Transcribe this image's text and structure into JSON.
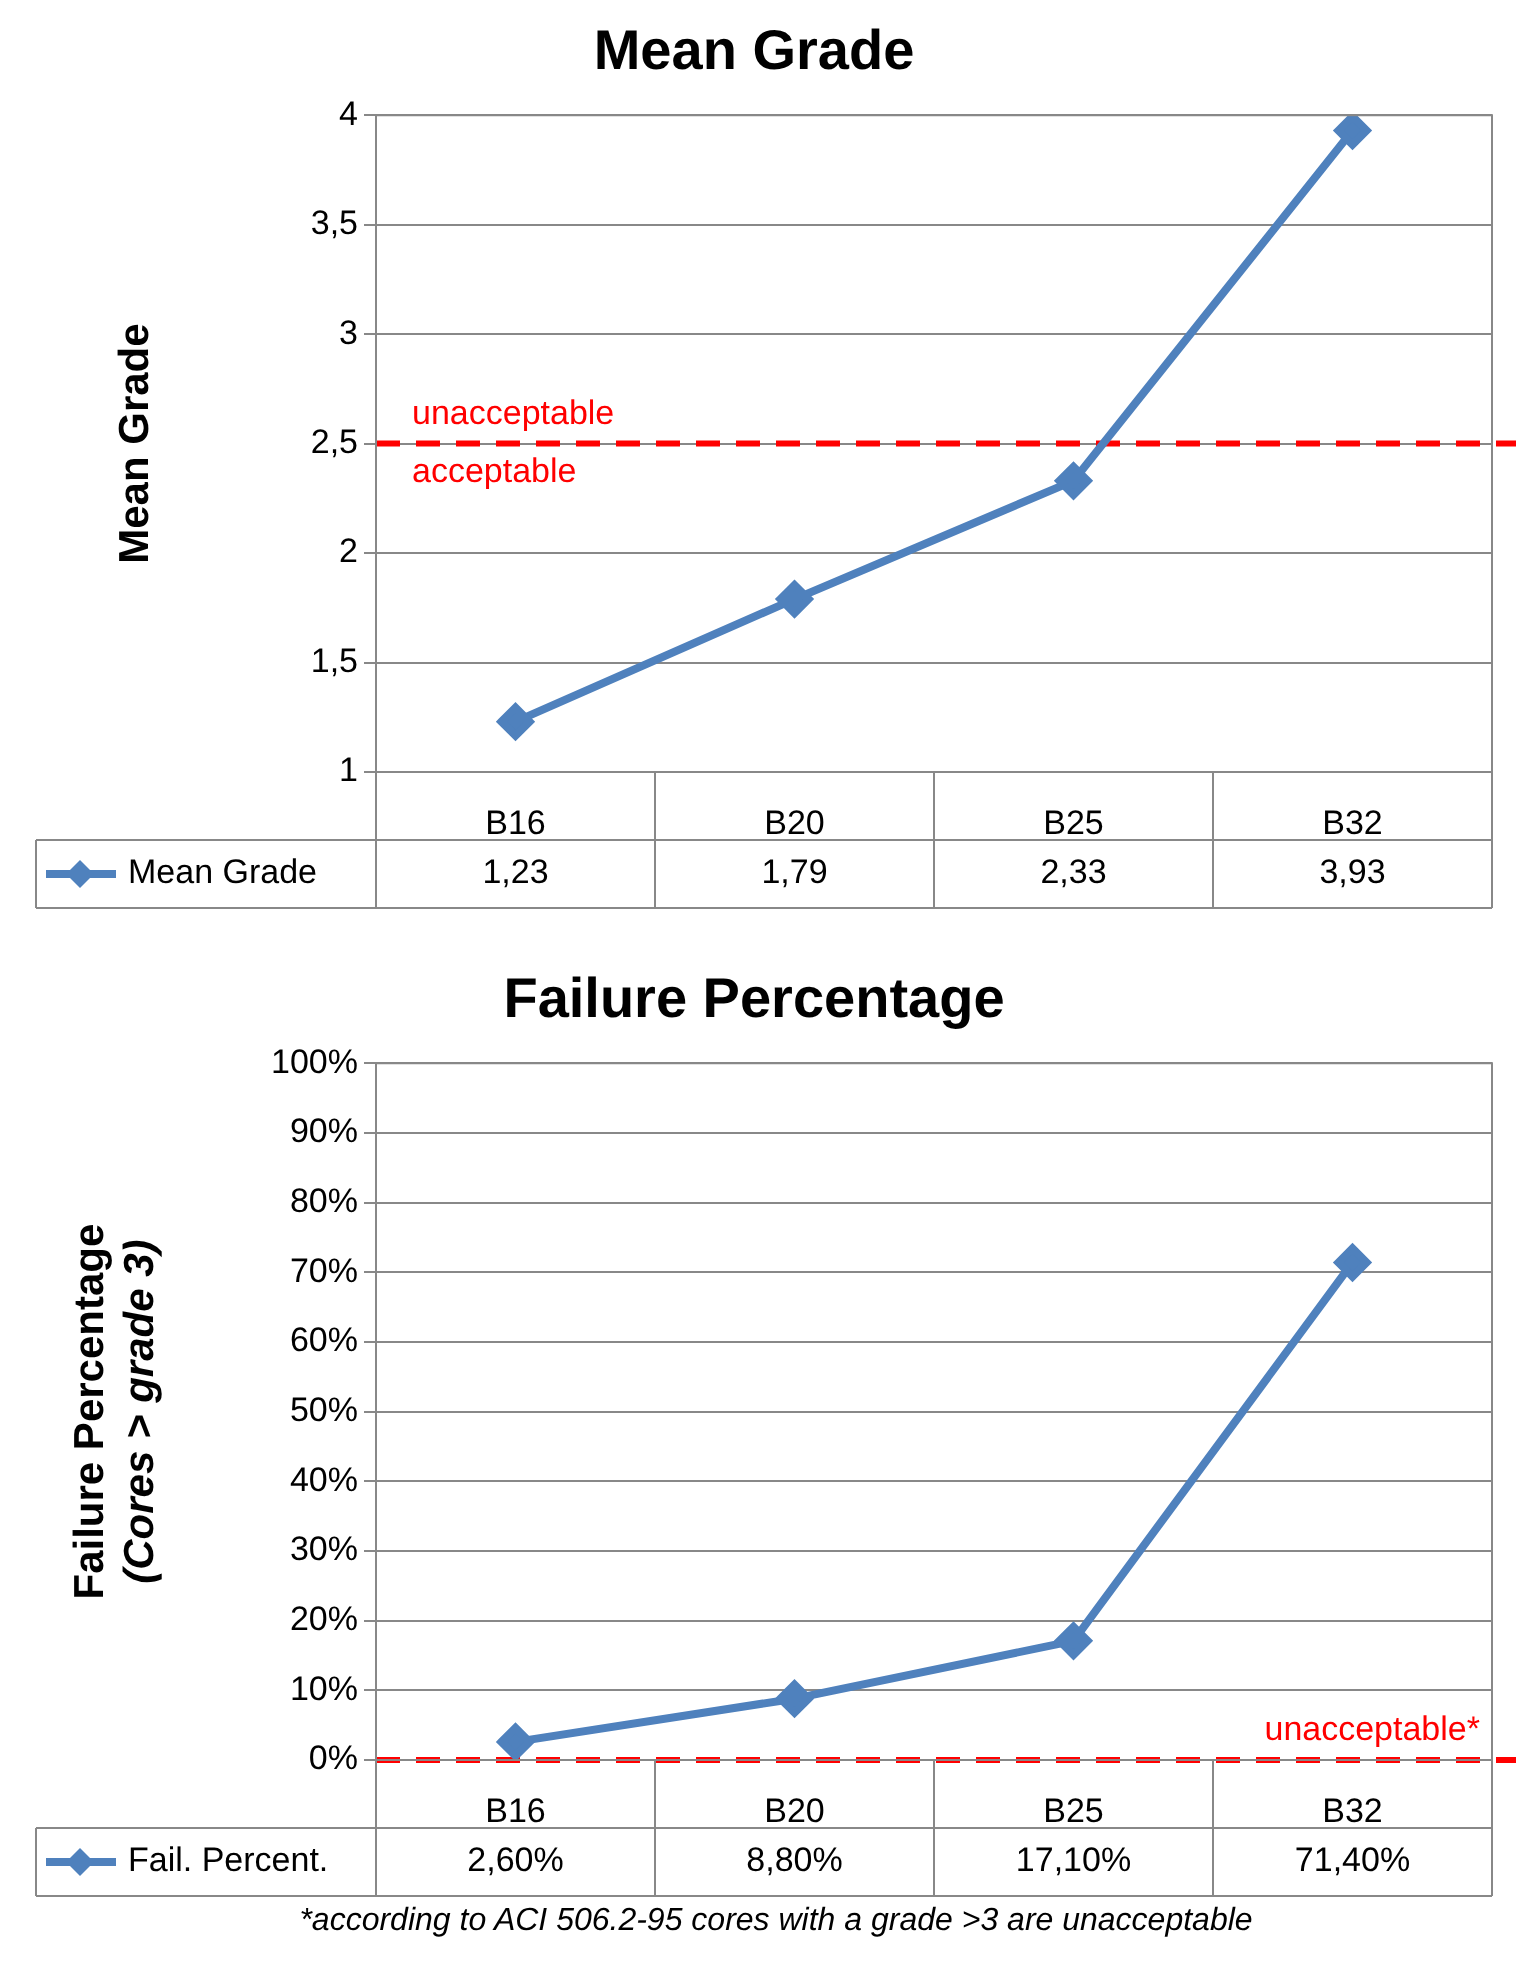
{
  "chart_data": [
    {
      "type": "line",
      "title": "Mean Grade",
      "ylabel": "Mean Grade",
      "categories": [
        "B16",
        "B20",
        "B25",
        "B32"
      ],
      "series": [
        {
          "name": "Mean Grade",
          "color": "#4f81bd",
          "values": [
            1.23,
            1.79,
            2.33,
            3.93
          ],
          "value_labels": [
            "1,23",
            "1,79",
            "2,33",
            "3,93"
          ]
        }
      ],
      "ylim": [
        1,
        4
      ],
      "yticks": [
        1,
        {
          "value": 1.5,
          "label": "1,5"
        },
        2,
        {
          "value": 2.5,
          "label": "2,5"
        },
        3,
        {
          "value": 3.5,
          "label": "3,5"
        },
        4
      ],
      "grid": "y",
      "legend": "bottom",
      "marker": "diamond",
      "line_style": "solid",
      "ref_lines": [
        {
          "axis": "y",
          "value": 2.5,
          "label": "unacceptable",
          "color": "#ff0000",
          "line_style": "dashed"
        }
      ],
      "annotations": [
        {
          "text": "acceptable",
          "y": 2.5
        }
      ]
    },
    {
      "type": "line",
      "title": "Failure Percentage",
      "ylabel": "Failure Percentage\n(Cores > grade 3)",
      "categories": [
        "B16",
        "B20",
        "B25",
        "B32"
      ],
      "series": [
        {
          "name": "Fail. Percent.",
          "color": "#4f81bd",
          "values": [
            2.6,
            8.8,
            17.1,
            71.4
          ],
          "value_labels": [
            "2,60%",
            "8,80%",
            "17,10%",
            "71,40%"
          ]
        }
      ],
      "ylim": [
        0,
        100
      ],
      "yticks": [
        {
          "value": 0,
          "label": "0%"
        },
        {
          "value": 10,
          "label": "10%"
        },
        {
          "value": 20,
          "label": "20%"
        },
        {
          "value": 30,
          "label": "30%"
        },
        {
          "value": 40,
          "label": "40%"
        },
        {
          "value": 50,
          "label": "50%"
        },
        {
          "value": 60,
          "label": "60%"
        },
        {
          "value": 70,
          "label": "70%"
        },
        {
          "value": 80,
          "label": "80%"
        },
        {
          "value": 90,
          "label": "90%"
        },
        {
          "value": 100,
          "label": "100%"
        }
      ],
      "grid": "y",
      "legend": "bottom",
      "marker": "diamond",
      "line_style": "solid",
      "ref_lines": [
        {
          "axis": "y",
          "value": 0,
          "label": "unacceptable*",
          "color": "#ff0000",
          "line_style": "dashed"
        }
      ],
      "annotations": [
        "*according to ACI 506.2-95 cores with a grade >3 are unacceptable"
      ]
    }
  ]
}
